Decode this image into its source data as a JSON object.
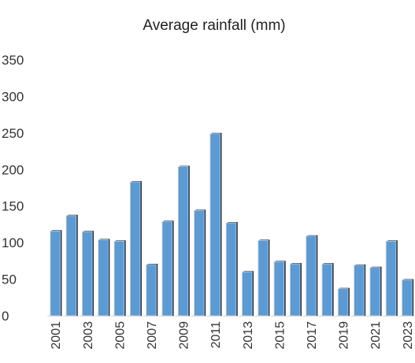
{
  "chart_data": {
    "type": "bar",
    "title": "Average rainfall (mm)",
    "xlabel": "",
    "ylabel": "",
    "ylim": [
      0,
      350
    ],
    "yticks": [
      0,
      50,
      100,
      150,
      200,
      250,
      300,
      350
    ],
    "grid": false,
    "legend": "none",
    "bar_color": "#5b9bd5",
    "bar_shadow_color": "#2f2f2f",
    "categories": [
      "2001",
      "2002",
      "2003",
      "2004",
      "2005",
      "2006",
      "2007",
      "2008",
      "2009",
      "2010",
      "2011",
      "2012",
      "2013",
      "2014",
      "2015",
      "2016",
      "2017",
      "2018",
      "2019",
      "2020",
      "2021",
      "2022",
      "2023"
    ],
    "tick_labels": [
      "2001",
      "2003",
      "2005",
      "2007",
      "2009",
      "2011",
      "2013",
      "2015",
      "2017",
      "2019",
      "2021",
      "2023"
    ],
    "values": [
      116,
      137,
      115,
      104,
      102,
      183,
      70,
      129,
      204,
      144,
      249,
      127,
      60,
      103,
      74,
      71,
      109,
      71,
      37,
      69,
      66,
      102,
      49
    ]
  }
}
